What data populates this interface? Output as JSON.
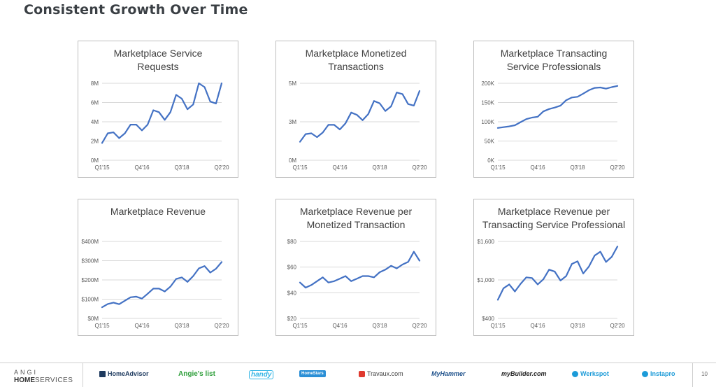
{
  "page": {
    "title": "Consistent Growth Over Time",
    "page_number": "10"
  },
  "chart_data": [
    {
      "type": "line",
      "title": "Marketplace Service\nRequests",
      "x_tick_labels": [
        "Q1'15",
        "Q4'16",
        "Q3'18",
        "Q2'20"
      ],
      "y_tick_labels": [
        "0M",
        "2M",
        "4M",
        "6M",
        "8M"
      ],
      "y_ticks": [
        0,
        2,
        4,
        6,
        8
      ],
      "ylim": [
        0,
        8
      ],
      "grid": true,
      "line_color": "#4472c4",
      "x": [
        "Q1'15",
        "Q2'15",
        "Q3'15",
        "Q4'15",
        "Q1'16",
        "Q2'16",
        "Q3'16",
        "Q4'16",
        "Q1'17",
        "Q2'17",
        "Q3'17",
        "Q4'17",
        "Q1'18",
        "Q2'18",
        "Q3'18",
        "Q4'18",
        "Q1'19",
        "Q2'19",
        "Q3'19",
        "Q4'19",
        "Q1'20",
        "Q2'20"
      ],
      "values": [
        1.8,
        2.8,
        2.9,
        2.3,
        2.8,
        3.7,
        3.7,
        3.1,
        3.7,
        5.2,
        5.0,
        4.2,
        5.0,
        6.8,
        6.4,
        5.3,
        5.8,
        8.0,
        7.6,
        6.1,
        5.9,
        8.0
      ]
    },
    {
      "type": "line",
      "title": "Marketplace Monetized\nTransactions",
      "x_tick_labels": [
        "Q1'15",
        "Q4'16",
        "Q3'18",
        "Q2'20"
      ],
      "y_tick_labels": [
        "0M",
        "3M",
        "5M"
      ],
      "y_ticks": [
        0,
        2.5,
        5
      ],
      "ylim": [
        0,
        5
      ],
      "grid": true,
      "line_color": "#4472c4",
      "x": [
        "Q1'15",
        "Q2'15",
        "Q3'15",
        "Q4'15",
        "Q1'16",
        "Q2'16",
        "Q3'16",
        "Q4'16",
        "Q1'17",
        "Q2'17",
        "Q3'17",
        "Q4'17",
        "Q1'18",
        "Q2'18",
        "Q3'18",
        "Q4'18",
        "Q1'19",
        "Q2'19",
        "Q3'19",
        "Q4'19",
        "Q1'20",
        "Q2'20"
      ],
      "values": [
        1.2,
        1.7,
        1.75,
        1.5,
        1.8,
        2.3,
        2.3,
        2.0,
        2.4,
        3.1,
        2.95,
        2.6,
        3.0,
        3.85,
        3.7,
        3.2,
        3.5,
        4.4,
        4.3,
        3.65,
        3.55,
        4.5
      ]
    },
    {
      "type": "line",
      "title": "Marketplace Transacting\nService Professionals",
      "x_tick_labels": [
        "Q1'15",
        "Q4'16",
        "Q3'18",
        "Q2'20"
      ],
      "y_tick_labels": [
        "0K",
        "50K",
        "100K",
        "150K",
        "200K"
      ],
      "y_ticks": [
        0,
        50,
        100,
        150,
        200
      ],
      "ylim": [
        0,
        200
      ],
      "grid": true,
      "line_color": "#4472c4",
      "x": [
        "Q1'15",
        "Q2'15",
        "Q3'15",
        "Q4'15",
        "Q1'16",
        "Q2'16",
        "Q3'16",
        "Q4'16",
        "Q1'17",
        "Q2'17",
        "Q3'17",
        "Q4'17",
        "Q1'18",
        "Q2'18",
        "Q3'18",
        "Q4'18",
        "Q1'19",
        "Q2'19",
        "Q3'19",
        "Q4'19",
        "Q1'20",
        "Q2'20"
      ],
      "values": [
        84,
        86,
        88,
        91,
        99,
        107,
        111,
        113,
        127,
        133,
        137,
        142,
        156,
        163,
        165,
        173,
        182,
        188,
        189,
        186,
        190,
        193
      ]
    },
    {
      "type": "line",
      "title": "Marketplace Revenue",
      "x_tick_labels": [
        "Q1'15",
        "Q4'16",
        "Q3'18",
        "Q2'20"
      ],
      "y_tick_labels": [
        "$0M",
        "$100M",
        "$200M",
        "$300M",
        "$400M"
      ],
      "y_ticks": [
        0,
        100,
        200,
        300,
        400
      ],
      "ylim": [
        0,
        400
      ],
      "grid": true,
      "line_color": "#4472c4",
      "x": [
        "Q1'15",
        "Q2'15",
        "Q3'15",
        "Q4'15",
        "Q1'16",
        "Q2'16",
        "Q3'16",
        "Q4'16",
        "Q1'17",
        "Q2'17",
        "Q3'17",
        "Q4'17",
        "Q1'18",
        "Q2'18",
        "Q3'18",
        "Q4'18",
        "Q1'19",
        "Q2'19",
        "Q3'19",
        "Q4'19",
        "Q1'20",
        "Q2'20"
      ],
      "values": [
        58,
        75,
        82,
        74,
        92,
        110,
        113,
        103,
        128,
        155,
        155,
        140,
        165,
        205,
        213,
        190,
        220,
        260,
        272,
        238,
        258,
        293
      ]
    },
    {
      "type": "line",
      "title": "Marketplace Revenue per\nMonetized Transaction",
      "x_tick_labels": [
        "Q1'15",
        "Q4'16",
        "Q3'18",
        "Q2'20"
      ],
      "y_tick_labels": [
        "$20",
        "$40",
        "$60",
        "$80"
      ],
      "y_ticks": [
        20,
        40,
        60,
        80
      ],
      "ylim": [
        20,
        80
      ],
      "grid": true,
      "line_color": "#4472c4",
      "x": [
        "Q1'15",
        "Q2'15",
        "Q3'15",
        "Q4'15",
        "Q1'16",
        "Q2'16",
        "Q3'16",
        "Q4'16",
        "Q1'17",
        "Q2'17",
        "Q3'17",
        "Q4'17",
        "Q1'18",
        "Q2'18",
        "Q3'18",
        "Q4'18",
        "Q1'19",
        "Q2'19",
        "Q3'19",
        "Q4'19",
        "Q1'20",
        "Q2'20"
      ],
      "values": [
        48,
        44,
        46,
        49,
        52,
        48,
        49,
        51,
        53,
        49,
        51,
        53,
        53,
        52,
        56,
        58,
        61,
        59,
        62,
        64,
        72,
        65
      ]
    },
    {
      "type": "line",
      "title": "Marketplace Revenue per\nTransacting Service Professional",
      "x_tick_labels": [
        "Q1'15",
        "Q4'16",
        "Q3'18",
        "Q2'20"
      ],
      "y_tick_labels": [
        "$400",
        "$1,000",
        "$1,600"
      ],
      "y_ticks": [
        400,
        1000,
        1600
      ],
      "ylim": [
        400,
        1600
      ],
      "grid": true,
      "line_color": "#4472c4",
      "x": [
        "Q1'15",
        "Q2'15",
        "Q3'15",
        "Q4'15",
        "Q1'16",
        "Q2'16",
        "Q3'16",
        "Q4'16",
        "Q1'17",
        "Q2'17",
        "Q3'17",
        "Q4'17",
        "Q1'18",
        "Q2'18",
        "Q3'18",
        "Q4'18",
        "Q1'19",
        "Q2'19",
        "Q3'19",
        "Q4'19",
        "Q1'20",
        "Q2'20"
      ],
      "values": [
        690,
        870,
        930,
        820,
        940,
        1040,
        1030,
        930,
        1010,
        1160,
        1130,
        990,
        1060,
        1250,
        1290,
        1100,
        1210,
        1380,
        1440,
        1280,
        1360,
        1520
      ]
    }
  ],
  "footer": {
    "logo": {
      "line1": "ANGI",
      "line2a": "HOME",
      "line2b": "SERVICES"
    },
    "brands": [
      {
        "name": "HomeAdvisor",
        "color": "#1e3a5f",
        "icon": "home-icon"
      },
      {
        "name": "Angie's list",
        "color": "#2e9e3a",
        "icon": "none"
      },
      {
        "name": "handy",
        "color": "#33b5e5",
        "icon": "none"
      },
      {
        "name": "HomeStars",
        "color": "#2b8fd6",
        "icon": "star-icon"
      },
      {
        "name": "Travaux.com",
        "color": "#e03a2f",
        "icon": "t-icon"
      },
      {
        "name": "MyHammer",
        "color": "#1b4f8a",
        "icon": "none"
      },
      {
        "name": "myBuilder.com",
        "color": "#222222",
        "icon": "none"
      },
      {
        "name": "Werkspot",
        "color": "#1c9bd8",
        "icon": "circle-icon"
      },
      {
        "name": "Instapro",
        "color": "#1c9bd8",
        "icon": "circle-icon"
      }
    ]
  }
}
